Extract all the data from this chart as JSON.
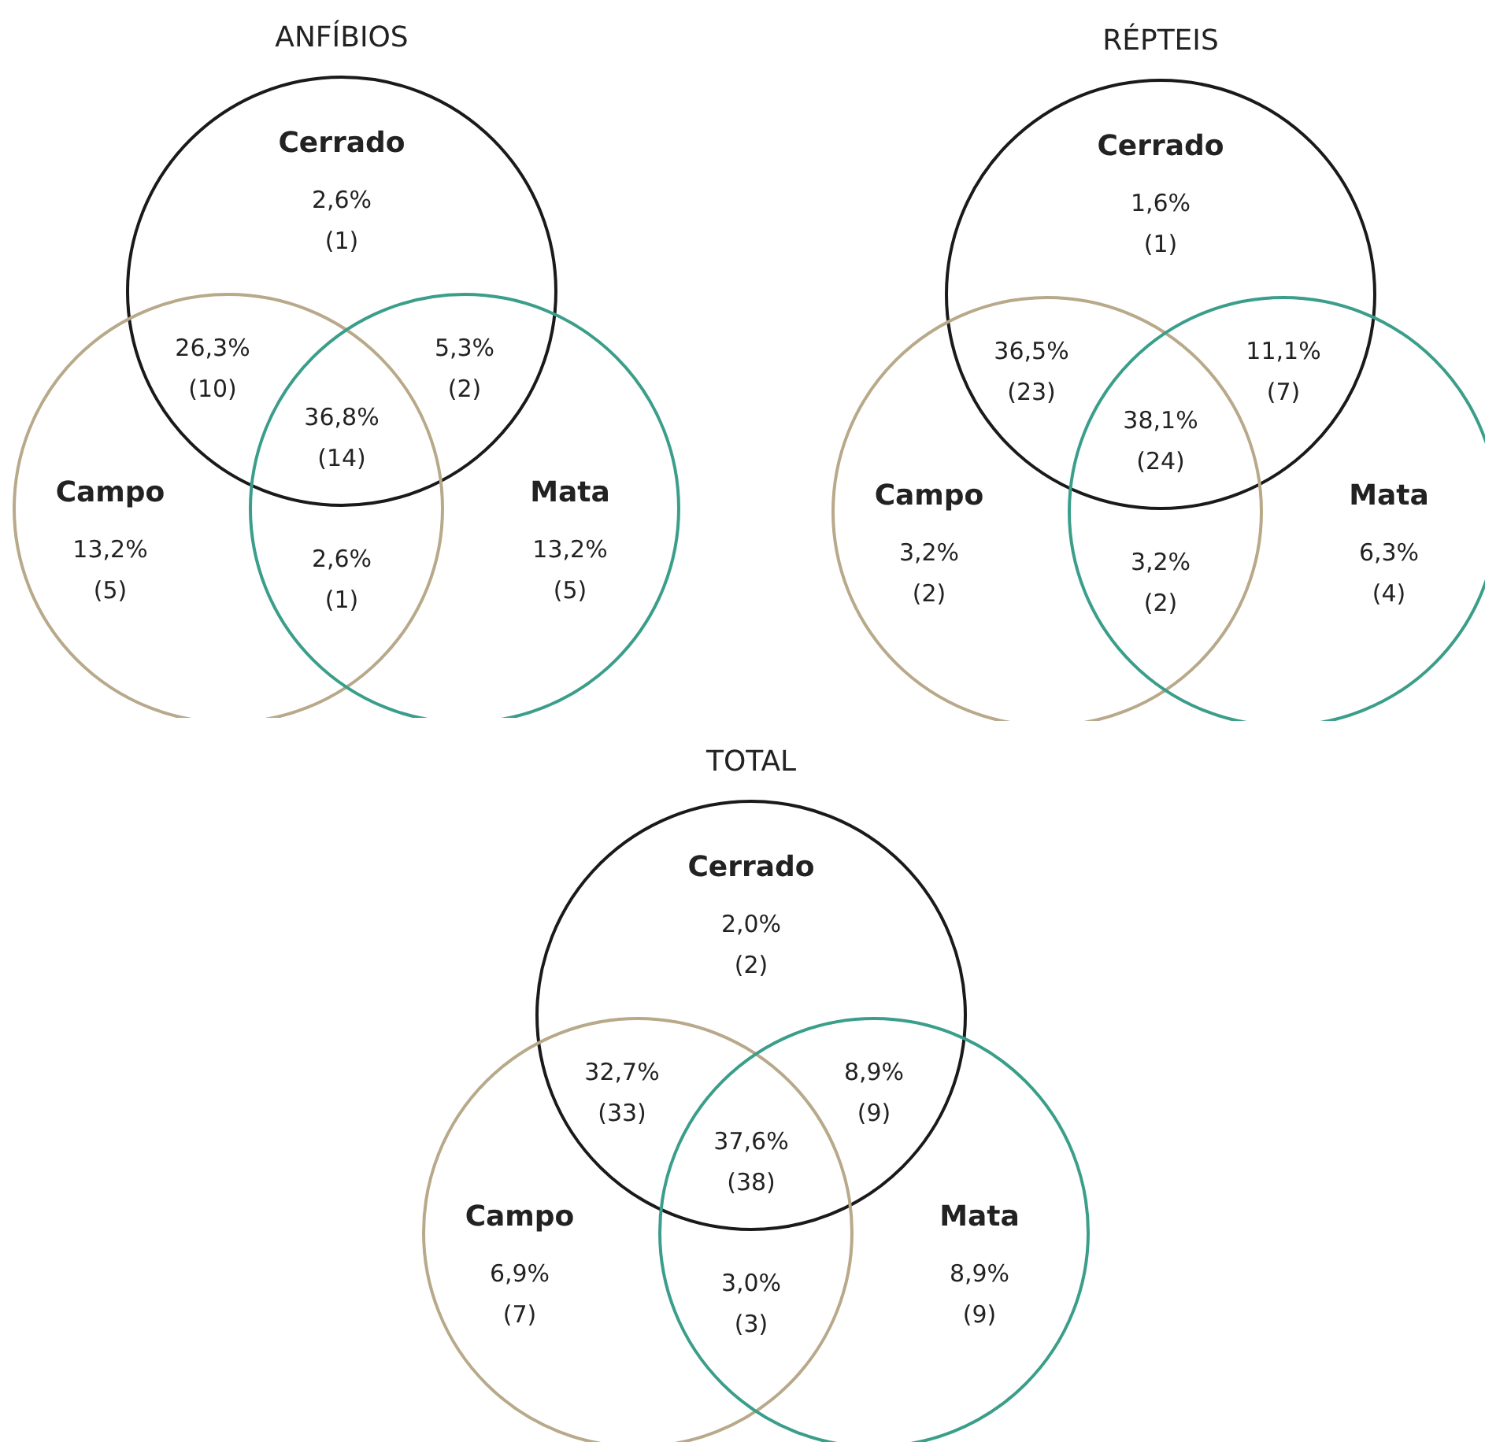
{
  "chart_data": [
    {
      "type": "other",
      "data_labels": true,
      "title": "ANFÍBIOS",
      "categories": [
        "Cerrado",
        "Campo",
        "Mata"
      ],
      "colors": [
        "#1a1a1a",
        "#b8a98a",
        "#3a9e8a"
      ],
      "series": [
        {
          "values": [
            2.6,
            13.2,
            13.2
          ],
          "value_labels": [
            "2,6%",
            "13,2%",
            "13,2%"
          ]
        },
        {
          "values": [
            1,
            5,
            5
          ],
          "value_labels": [
            "(1)",
            "(5)",
            "(5)"
          ]
        }
      ],
      "annotations": [
        "26,3%",
        "(10)",
        "5,3%",
        "(2)",
        "2,6%",
        "(1)",
        "36,8%",
        "(14)"
      ]
    },
    {
      "type": "other",
      "data_labels": true,
      "title": "RÉPTEIS",
      "categories": [
        "Cerrado",
        "Campo",
        "Mata"
      ],
      "colors": [
        "#1a1a1a",
        "#b8a98a",
        "#3a9e8a"
      ],
      "series": [
        {
          "values": [
            1.6,
            3.2,
            6.3
          ],
          "value_labels": [
            "1,6%",
            "3,2%",
            "6,3%"
          ]
        },
        {
          "values": [
            1,
            2,
            4
          ],
          "value_labels": [
            "(1)",
            "(2)",
            "(4)"
          ]
        }
      ],
      "annotations": [
        "36,5%",
        "(23)",
        "11,1%",
        "(7)",
        "3,2%",
        "(2)",
        "38,1%",
        "(24)"
      ]
    },
    {
      "type": "other",
      "data_labels": true,
      "title": "TOTAL",
      "categories": [
        "Cerrado",
        "Campo",
        "Mata"
      ],
      "colors": [
        "#1a1a1a",
        "#b8a98a",
        "#3a9e8a"
      ],
      "series": [
        {
          "values": [
            2.0,
            6.9,
            8.9
          ],
          "value_labels": [
            "2,0%",
            "6,9%",
            "8,9%"
          ]
        },
        {
          "values": [
            2,
            7,
            9
          ],
          "value_labels": [
            "(2)",
            "(7)",
            "(9)"
          ]
        }
      ],
      "annotations": [
        "32,7%",
        "(33)",
        "8,9%",
        "(9)",
        "3,0%",
        "(3)",
        "37,6%",
        "(38)"
      ]
    }
  ]
}
